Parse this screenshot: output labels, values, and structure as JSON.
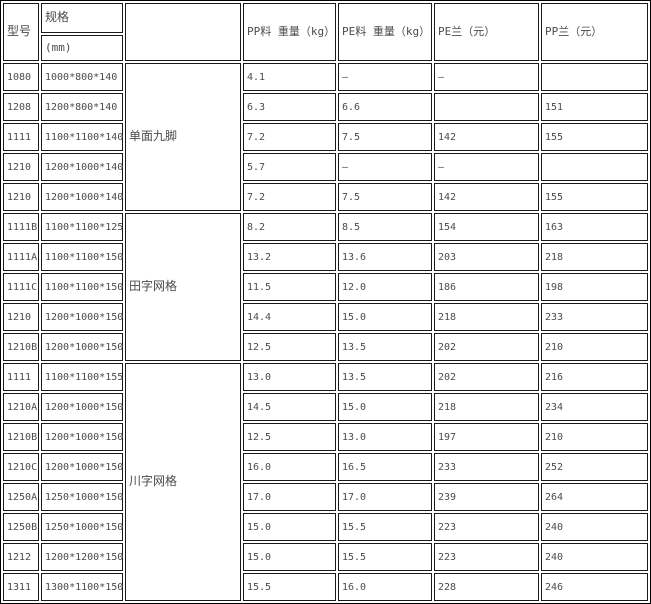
{
  "table": {
    "headers": {
      "model": "型号",
      "spec": "规格",
      "spec_unit": "(mm)",
      "category": "",
      "pp_weight": "PP料 重量（kg）",
      "pe_weight": "PE料 重量（kg）",
      "pe_price": "PE兰（元）",
      "pp_price": "PP兰（元）"
    },
    "groups": [
      {
        "category": "单面九脚",
        "rows": [
          {
            "model": "1080",
            "spec": "1000*800*140",
            "pp_weight": "4.1",
            "pe_weight": "—",
            "pe_price": "—",
            "pp_price": ""
          },
          {
            "model": "1208",
            "spec": "1200*800*140",
            "pp_weight": "6.3",
            "pe_weight": "6.6",
            "pe_price": "",
            "pp_price": "151"
          },
          {
            "model": "1111",
            "spec": "1100*1100*140",
            "pp_weight": "7.2",
            "pe_weight": "7.5",
            "pe_price": "142",
            "pp_price": "155"
          },
          {
            "model": "1210",
            "spec": "1200*1000*140",
            "pp_weight": "5.7",
            "pe_weight": "—",
            "pe_price": "—",
            "pp_price": ""
          },
          {
            "model": "1210",
            "spec": "1200*1000*140",
            "pp_weight": "7.2",
            "pe_weight": "7.5",
            "pe_price": "142",
            "pp_price": "155"
          }
        ]
      },
      {
        "category": "田字网格",
        "rows": [
          {
            "model": "1111B",
            "spec": "1100*1100*125",
            "pp_weight": "8.2",
            "pe_weight": "8.5",
            "pe_price": "154",
            "pp_price": "163"
          },
          {
            "model": "1111A",
            "spec": "1100*1100*150",
            "pp_weight": "13.2",
            "pe_weight": "13.6",
            "pe_price": "203",
            "pp_price": "218"
          },
          {
            "model": "1111C",
            "spec": "1100*1100*150",
            "pp_weight": "11.5",
            "pe_weight": "12.0",
            "pe_price": "186",
            "pp_price": "198"
          },
          {
            "model": "1210",
            "spec": "1200*1000*150",
            "pp_weight": "14.4",
            "pe_weight": "15.0",
            "pe_price": "218",
            "pp_price": "233"
          },
          {
            "model": "1210B",
            "spec": "1200*1000*150",
            "pp_weight": "12.5",
            "pe_weight": "13.5",
            "pe_price": "202",
            "pp_price": "210"
          }
        ]
      },
      {
        "category": "川字网格",
        "rows": [
          {
            "model": "1111",
            "spec": "1100*1100*155",
            "pp_weight": "13.0",
            "pe_weight": "13.5",
            "pe_price": "202",
            "pp_price": "216"
          },
          {
            "model": "1210A",
            "spec": "1200*1000*150",
            "pp_weight": "14.5",
            "pe_weight": "15.0",
            "pe_price": "218",
            "pp_price": "234"
          },
          {
            "model": "1210B",
            "spec": "1200*1000*150",
            "pp_weight": "12.5",
            "pe_weight": "13.0",
            "pe_price": "197",
            "pp_price": "210"
          },
          {
            "model": "1210C",
            "spec": "1200*1000*150",
            "pp_weight": "16.0",
            "pe_weight": "16.5",
            "pe_price": "233",
            "pp_price": "252"
          },
          {
            "model": "1250A",
            "spec": "1250*1000*150",
            "pp_weight": "17.0",
            "pe_weight": "17.0",
            "pe_price": "239",
            "pp_price": "264"
          },
          {
            "model": "1250B",
            "spec": "1250*1000*150",
            "pp_weight": "15.0",
            "pe_weight": "15.5",
            "pe_price": "223",
            "pp_price": "240"
          },
          {
            "model": "1212",
            "spec": "1200*1200*150",
            "pp_weight": "15.0",
            "pe_weight": "15.5",
            "pe_price": "223",
            "pp_price": "240"
          },
          {
            "model": "1311",
            "spec": "1300*1100*150",
            "pp_weight": "15.5",
            "pe_weight": "16.0",
            "pe_price": "228",
            "pp_price": "246"
          }
        ]
      }
    ]
  },
  "colors": {
    "border": "#1a1a1a",
    "text": "#4b4b4b",
    "background": "#ffffff"
  }
}
